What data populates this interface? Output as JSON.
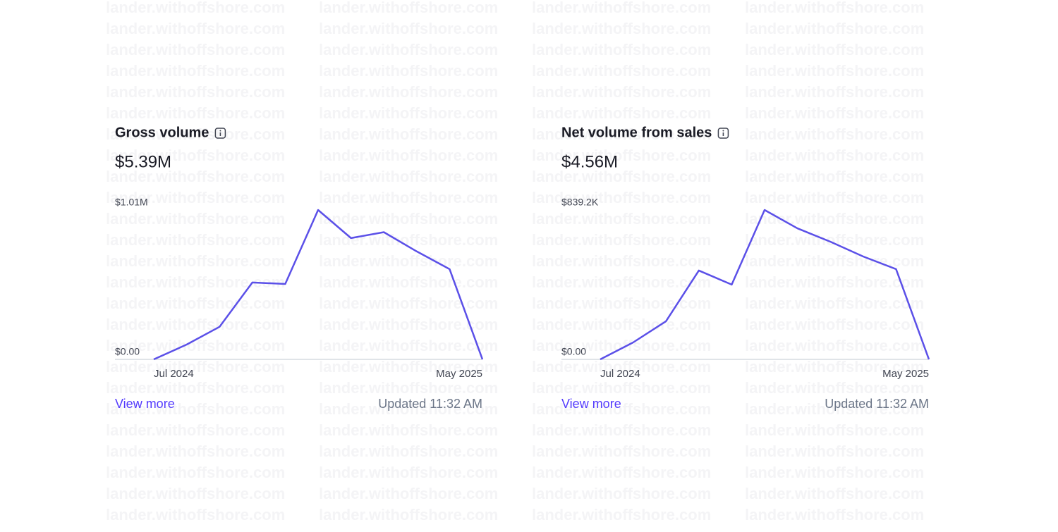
{
  "watermark": "lander.withoffshore.com",
  "chart_data": [
    {
      "type": "line",
      "title": "Gross volume",
      "total": "$5.39M",
      "color": "#5b50e8",
      "categories": [
        "Jul 2024",
        null,
        null,
        null,
        null,
        null,
        null,
        null,
        null,
        null,
        "May 2025"
      ],
      "values": [
        0,
        0.1,
        0.22,
        0.52,
        0.51,
        1.01,
        0.82,
        0.86,
        0.73,
        0.61,
        0
      ],
      "ylim": [
        0,
        1.01
      ],
      "yticks": [
        {
          "value": 0,
          "label": "$0.00"
        },
        {
          "value": 1.01,
          "label": "$1.01M"
        }
      ],
      "link": "View more",
      "updated": "Updated 11:32 AM"
    },
    {
      "type": "line",
      "title": "Net volume from sales",
      "total": "$4.56M",
      "color": "#5b50e8",
      "categories": [
        "Jul 2024",
        null,
        null,
        null,
        null,
        null,
        null,
        null,
        null,
        null,
        "May 2025"
      ],
      "values": [
        0,
        95,
        214,
        499,
        420,
        839.2,
        736,
        661,
        578,
        507,
        0
      ],
      "ylim": [
        0,
        839.2
      ],
      "yticks": [
        {
          "value": 0,
          "label": "$0.00"
        },
        {
          "value": 839.2,
          "label": "$839.2K"
        }
      ],
      "link": "View more",
      "updated": "Updated 11:32 AM"
    }
  ]
}
